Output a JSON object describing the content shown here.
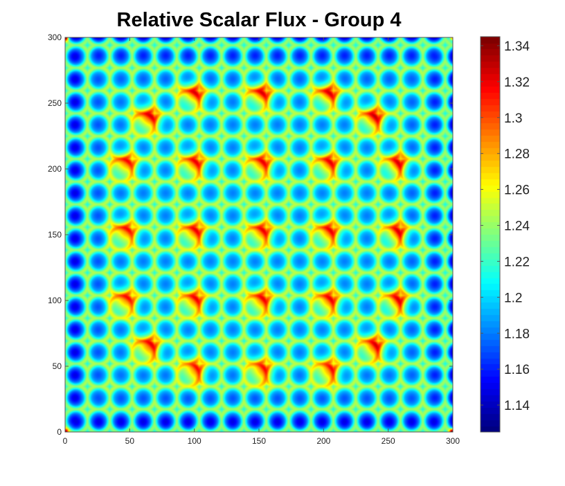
{
  "chart_data": {
    "type": "heatmap",
    "title": "Relative Scalar Flux - Group 4",
    "xlabel": "",
    "ylabel": "",
    "xlim": [
      0,
      300
    ],
    "ylim": [
      0,
      300
    ],
    "x_ticks": [
      "0",
      "50",
      "100",
      "150",
      "200",
      "250",
      "300"
    ],
    "y_ticks": [
      "0",
      "50",
      "100",
      "150",
      "200",
      "250",
      "300"
    ],
    "colorbar": {
      "min": 1.125,
      "max": 1.345,
      "colormap": "jet",
      "ticks": [
        "1.14",
        "1.16",
        "1.18",
        "1.2",
        "1.22",
        "1.24",
        "1.26",
        "1.28",
        "1.3",
        "1.32",
        "1.34"
      ],
      "tick_values": [
        1.14,
        1.16,
        1.18,
        1.2,
        1.22,
        1.24,
        1.26,
        1.28,
        1.3,
        1.32,
        1.34
      ]
    },
    "pin_pitch": 17.3,
    "pins_per_side": 17,
    "background_level": 1.205,
    "hot_spots": [
      {
        "x": 99,
        "y": 46,
        "value": 1.335
      },
      {
        "x": 151,
        "y": 46,
        "value": 1.335
      },
      {
        "x": 203,
        "y": 46,
        "value": 1.335
      },
      {
        "x": 64,
        "y": 64,
        "value": 1.34
      },
      {
        "x": 238,
        "y": 64,
        "value": 1.34
      },
      {
        "x": 46,
        "y": 99,
        "value": 1.335
      },
      {
        "x": 99,
        "y": 99,
        "value": 1.335
      },
      {
        "x": 151,
        "y": 99,
        "value": 1.335
      },
      {
        "x": 203,
        "y": 99,
        "value": 1.335
      },
      {
        "x": 256,
        "y": 99,
        "value": 1.335
      },
      {
        "x": 46,
        "y": 151,
        "value": 1.335
      },
      {
        "x": 99,
        "y": 151,
        "value": 1.335
      },
      {
        "x": 151,
        "y": 151,
        "value": 1.335
      },
      {
        "x": 203,
        "y": 151,
        "value": 1.335
      },
      {
        "x": 256,
        "y": 151,
        "value": 1.335
      },
      {
        "x": 46,
        "y": 203,
        "value": 1.335
      },
      {
        "x": 99,
        "y": 203,
        "value": 1.335
      },
      {
        "x": 151,
        "y": 203,
        "value": 1.335
      },
      {
        "x": 203,
        "y": 203,
        "value": 1.335
      },
      {
        "x": 256,
        "y": 203,
        "value": 1.335
      },
      {
        "x": 64,
        "y": 238,
        "value": 1.34
      },
      {
        "x": 238,
        "y": 238,
        "value": 1.34
      },
      {
        "x": 99,
        "y": 256,
        "value": 1.335
      },
      {
        "x": 151,
        "y": 256,
        "value": 1.335
      },
      {
        "x": 203,
        "y": 256,
        "value": 1.335
      }
    ],
    "edge_min_value": 1.135,
    "corner_value": 1.34
  }
}
